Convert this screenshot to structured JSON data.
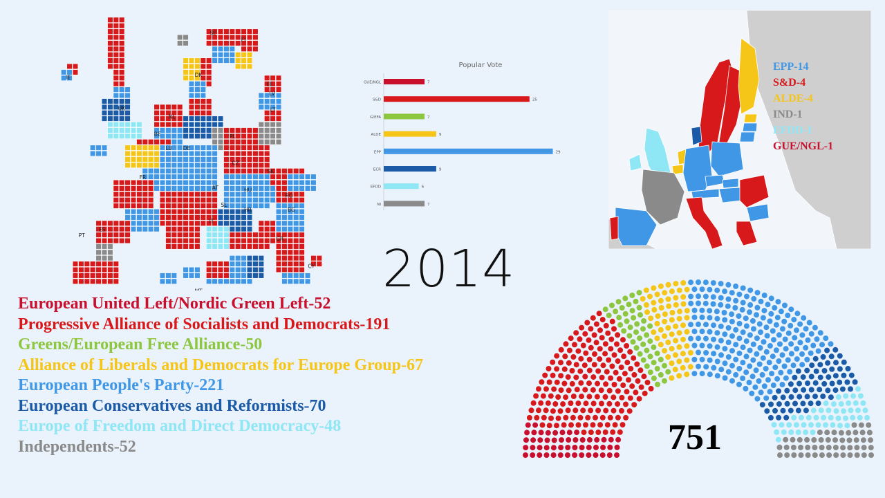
{
  "year": "2014",
  "parties": [
    {
      "abbr": "GUE/NGL",
      "name": "European United Left/Nordic Green Left",
      "seats": 52,
      "label": "European United Left/Nordic Green Left-52",
      "color": "#c8102e"
    },
    {
      "abbr": "S&D",
      "name": "Progressive Alliance of Socialists and Democrats",
      "seats": 191,
      "label": "Progressive Alliance of Socialists and Democrats-191",
      "color": "#d7191c"
    },
    {
      "abbr": "G/EFA",
      "name": "Greens/European Free Alliance",
      "seats": 50,
      "label": "Greens/European Free Alliance-50",
      "color": "#8dc63f"
    },
    {
      "abbr": "ALDE",
      "name": "Alliance of Liberals and Democrats for Europe Group",
      "seats": 67,
      "label": "Alliance of Liberals and Democrats for Europe Group-67",
      "color": "#f5c518"
    },
    {
      "abbr": "EPP",
      "name": "European People's Party",
      "seats": 221,
      "label": "European People's Party-221",
      "color": "#3f97e6"
    },
    {
      "abbr": "ECR",
      "name": "European Conservatives and Reformists",
      "seats": 70,
      "label": "European Conservatives and Reformists-70",
      "color": "#1a5aa6"
    },
    {
      "abbr": "EFDD",
      "name": "Europe of Freedom and Direct Democracy",
      "seats": 48,
      "label": "Europe of Freedom and Direct Democracy-48",
      "color": "#8fe6f5"
    },
    {
      "abbr": "NI",
      "name": "Independents",
      "seats": 52,
      "label": "Independents-52",
      "color": "#8a8a8a"
    }
  ],
  "total_seats": "751",
  "chart_data": [
    {
      "type": "bar",
      "title": "Popular Vote",
      "orientation": "horizontal",
      "categories": [
        "GUE/NGL",
        "S&D",
        "G/EFA",
        "ALDE",
        "EPP",
        "ECR",
        "EFDD",
        "NI"
      ],
      "values": [
        7,
        25,
        7,
        9,
        29,
        9,
        6,
        7
      ],
      "value_labels": [
        "7",
        "25",
        "7",
        "9",
        "29",
        "9",
        "6",
        "7"
      ],
      "colors": [
        "#c8102e",
        "#d7191c",
        "#8dc63f",
        "#f5c518",
        "#3f97e6",
        "#1a5aa6",
        "#8fe6f5",
        "#8a8a8a"
      ],
      "xlim": [
        0,
        30
      ],
      "grid": false
    },
    {
      "type": "hemicycle",
      "total": 751,
      "categories": [
        "GUE/NGL",
        "S&D",
        "G/EFA",
        "ALDE",
        "EPP",
        "ECR",
        "EFDD",
        "NI"
      ],
      "values": [
        52,
        191,
        50,
        67,
        221,
        70,
        48,
        52
      ]
    }
  ],
  "map_legend": [
    {
      "label": "EPP-14",
      "color": "#3f97e6"
    },
    {
      "label": "S&D-4",
      "color": "#d7191c"
    },
    {
      "label": "ALDE-4",
      "color": "#f5c518"
    },
    {
      "label": "IND-1",
      "color": "#8a8a8a"
    },
    {
      "label": "EFDD-1",
      "color": "#8fe6f5"
    },
    {
      "label": "GUE/NGL-1",
      "color": "#c8102e"
    }
  ],
  "country_codes": [
    "IE",
    "UK",
    "SE",
    "FI",
    "DK",
    "EE",
    "LV",
    "LT",
    "NL",
    "BE",
    "LU",
    "DE",
    "PL",
    "CZ",
    "SK",
    "FR",
    "AT",
    "HU",
    "SL",
    "HR",
    "RO",
    "BG",
    "ES",
    "PT",
    "IT",
    "GR",
    "MT",
    "CY"
  ]
}
